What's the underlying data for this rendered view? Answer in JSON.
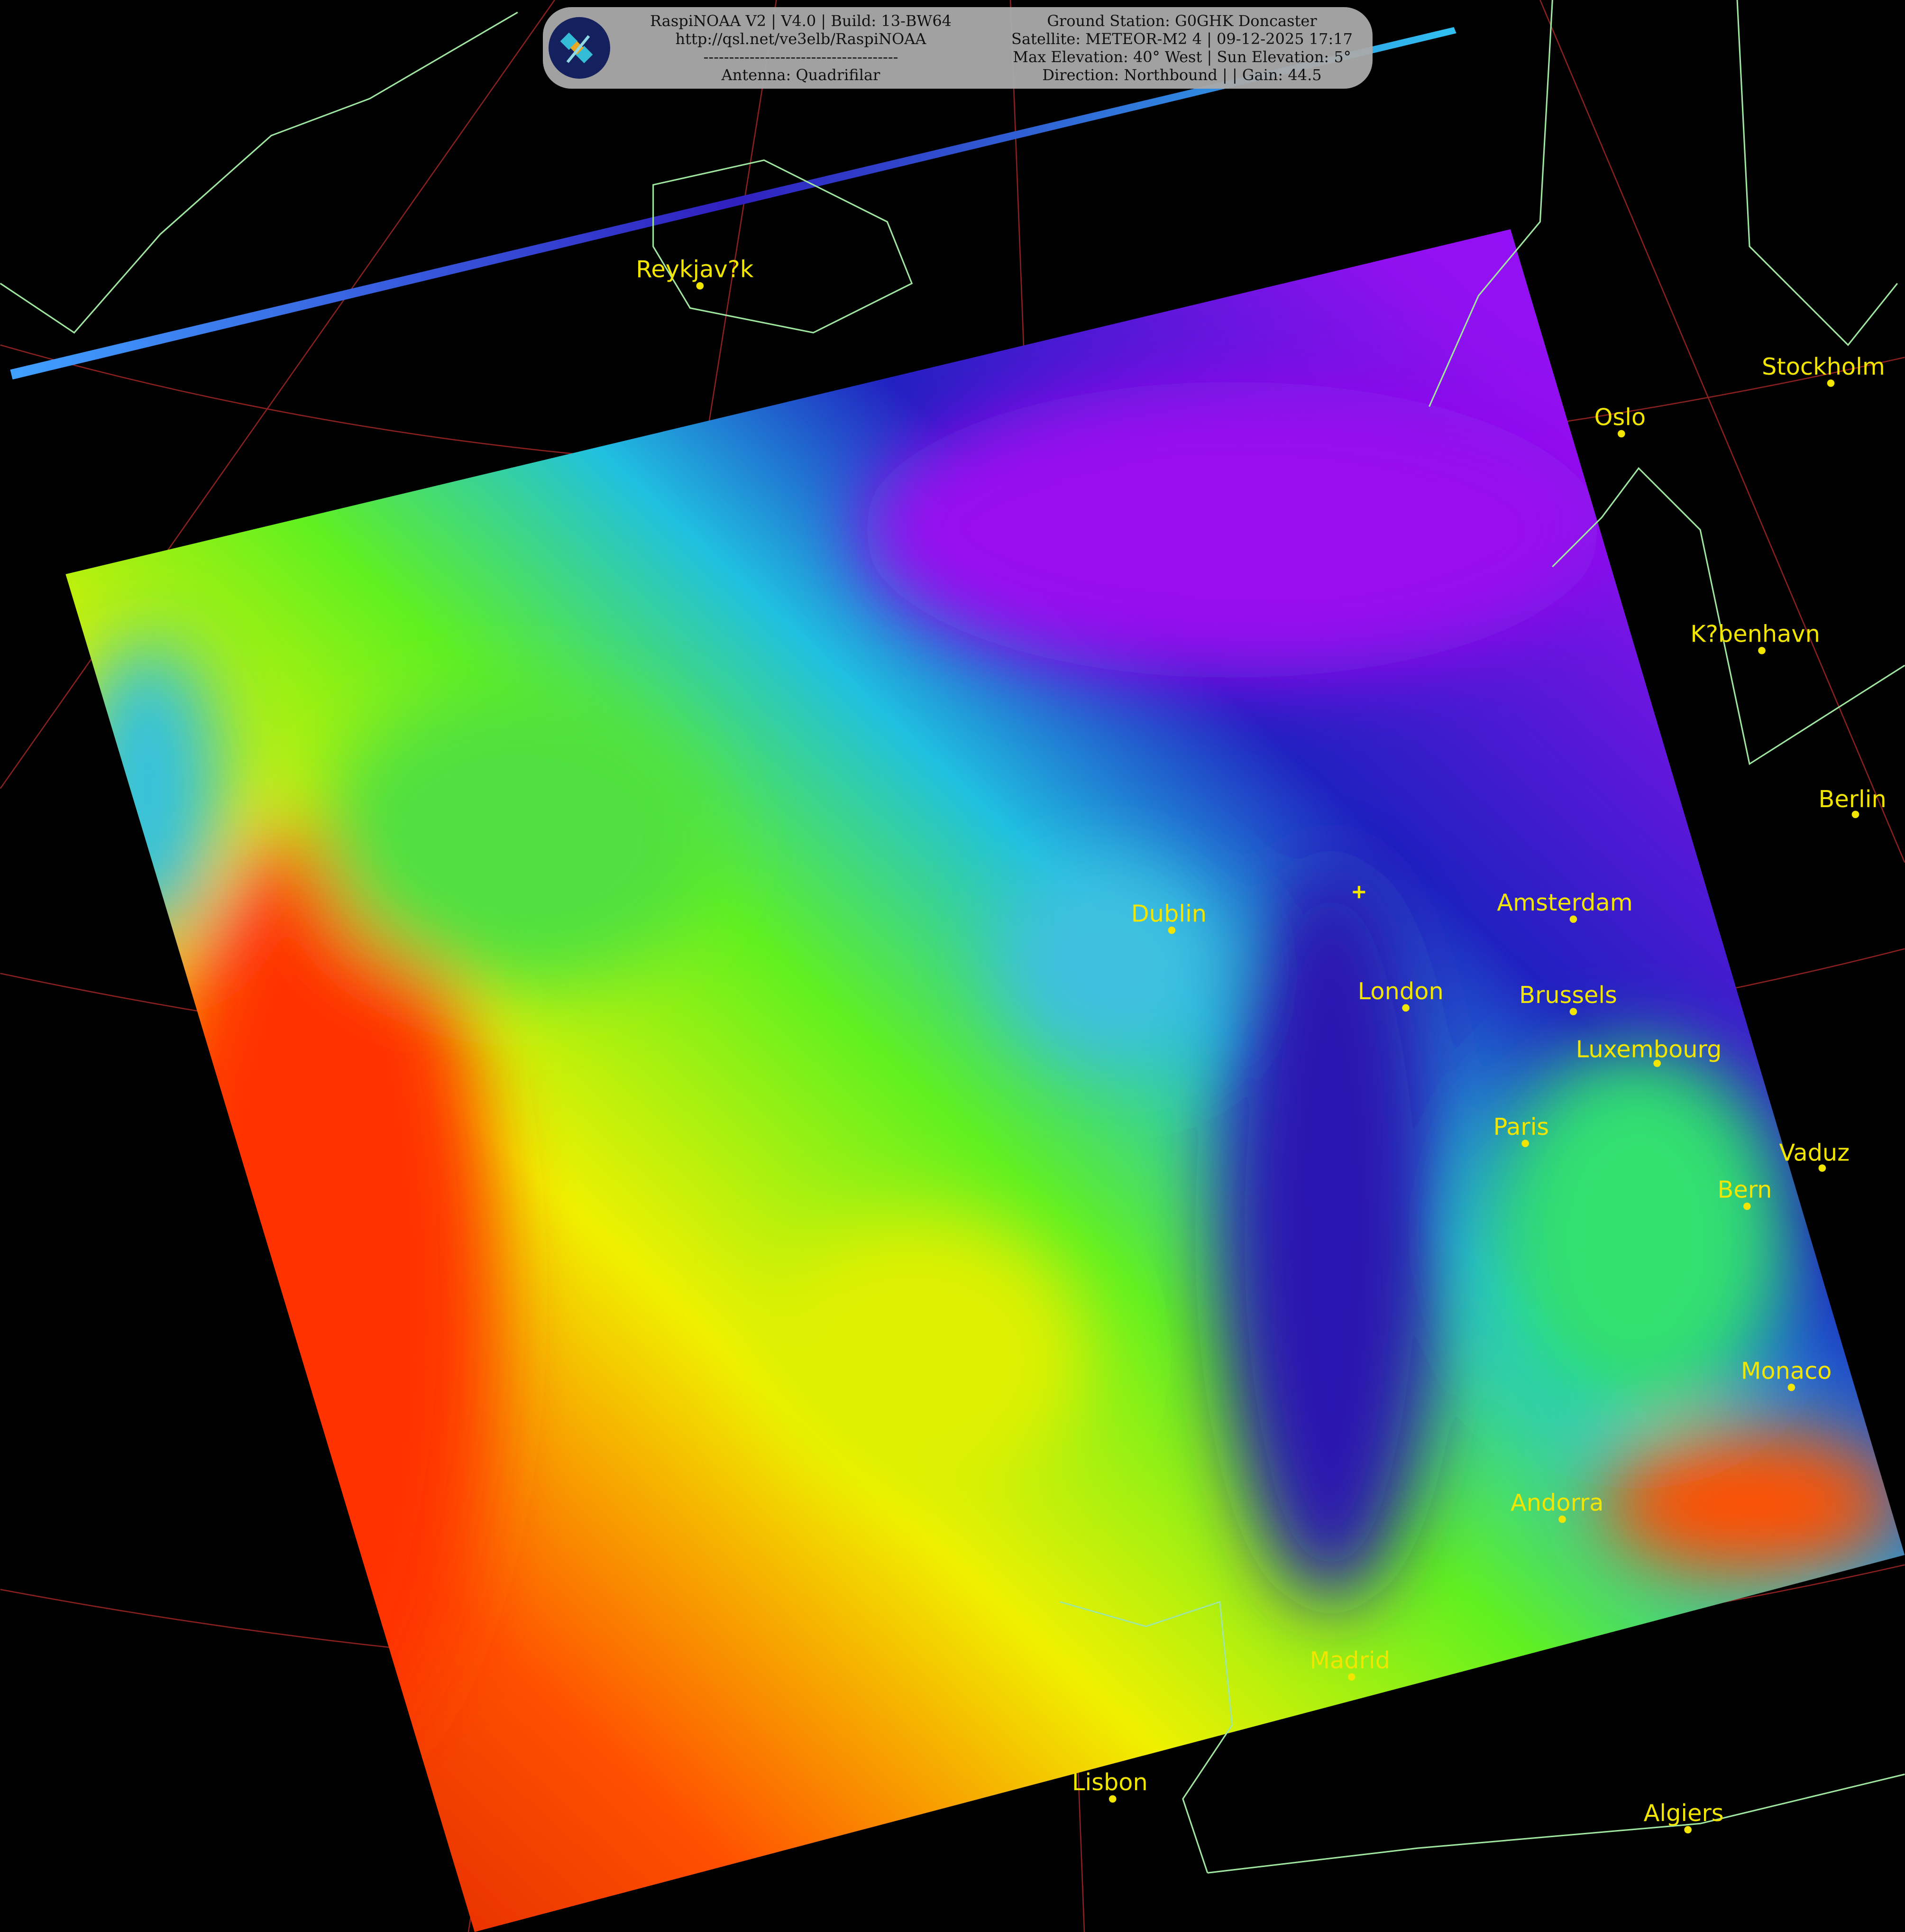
{
  "header": {
    "left_lines": [
      "RaspiNOAA V2 | V4.0 | Build: 13-BW64",
      "http://qsl.net/ve3elb/RaspiNOAA",
      "--------------------------------------",
      "Antenna: Quadrifilar"
    ],
    "right_lines": [
      "Ground Station: G0GHK Doncaster",
      "Satellite: METEOR-M2 4 | 09-12-2025 17:17",
      "Max Elevation: 40° West | Sun Elevation: 5°",
      "Direction: Northbound | | Gain: 44.5"
    ],
    "logo_icon": "satellite-icon"
  },
  "cities": [
    {
      "name": "Reykjav?k"
    },
    {
      "name": "Oslo"
    },
    {
      "name": "Stockholm"
    },
    {
      "name": "K?benhavn"
    },
    {
      "name": "Berlin"
    },
    {
      "name": "Amsterdam"
    },
    {
      "name": "Dublin"
    },
    {
      "name": "London"
    },
    {
      "name": "Brussels"
    },
    {
      "name": "Luxembourg"
    },
    {
      "name": "Paris"
    },
    {
      "name": "Vaduz"
    },
    {
      "name": "Bern"
    },
    {
      "name": "Monaco"
    },
    {
      "name": "Andorra"
    },
    {
      "name": "Madrid"
    },
    {
      "name": "Lisbon"
    },
    {
      "name": "Algiers"
    }
  ],
  "colors": {
    "label": "#f2e600",
    "coast": "#9fe6a0",
    "grid": "#8a2020",
    "background": "#000000"
  }
}
